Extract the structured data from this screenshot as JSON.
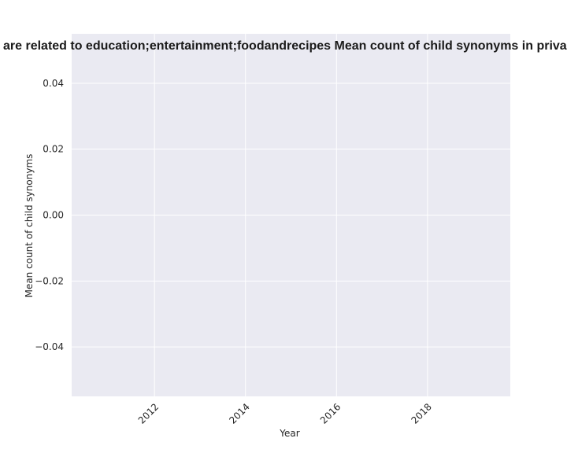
{
  "chart_data": {
    "type": "line",
    "title": "are related to education;entertainment;foodandrecipes Mean count of child synonyms in priva",
    "xlabel": "Year",
    "ylabel": "Mean count of child synonyms",
    "x_ticks": [
      "2012",
      "2014",
      "2016",
      "2018"
    ],
    "x_tick_values": [
      2012,
      2014,
      2016,
      2018
    ],
    "y_ticks": [
      "−0.04",
      "−0.02",
      "0.00",
      "0.02",
      "0.04"
    ],
    "y_tick_values": [
      -0.04,
      -0.02,
      0.0,
      0.02,
      0.04
    ],
    "xlim": [
      2010.18,
      2019.82
    ],
    "ylim": [
      -0.055,
      0.055
    ],
    "grid": true,
    "series": [],
    "colors": {
      "plot_bg": "#eaeaf2",
      "grid": "#ffffff",
      "text": "#262626"
    }
  }
}
